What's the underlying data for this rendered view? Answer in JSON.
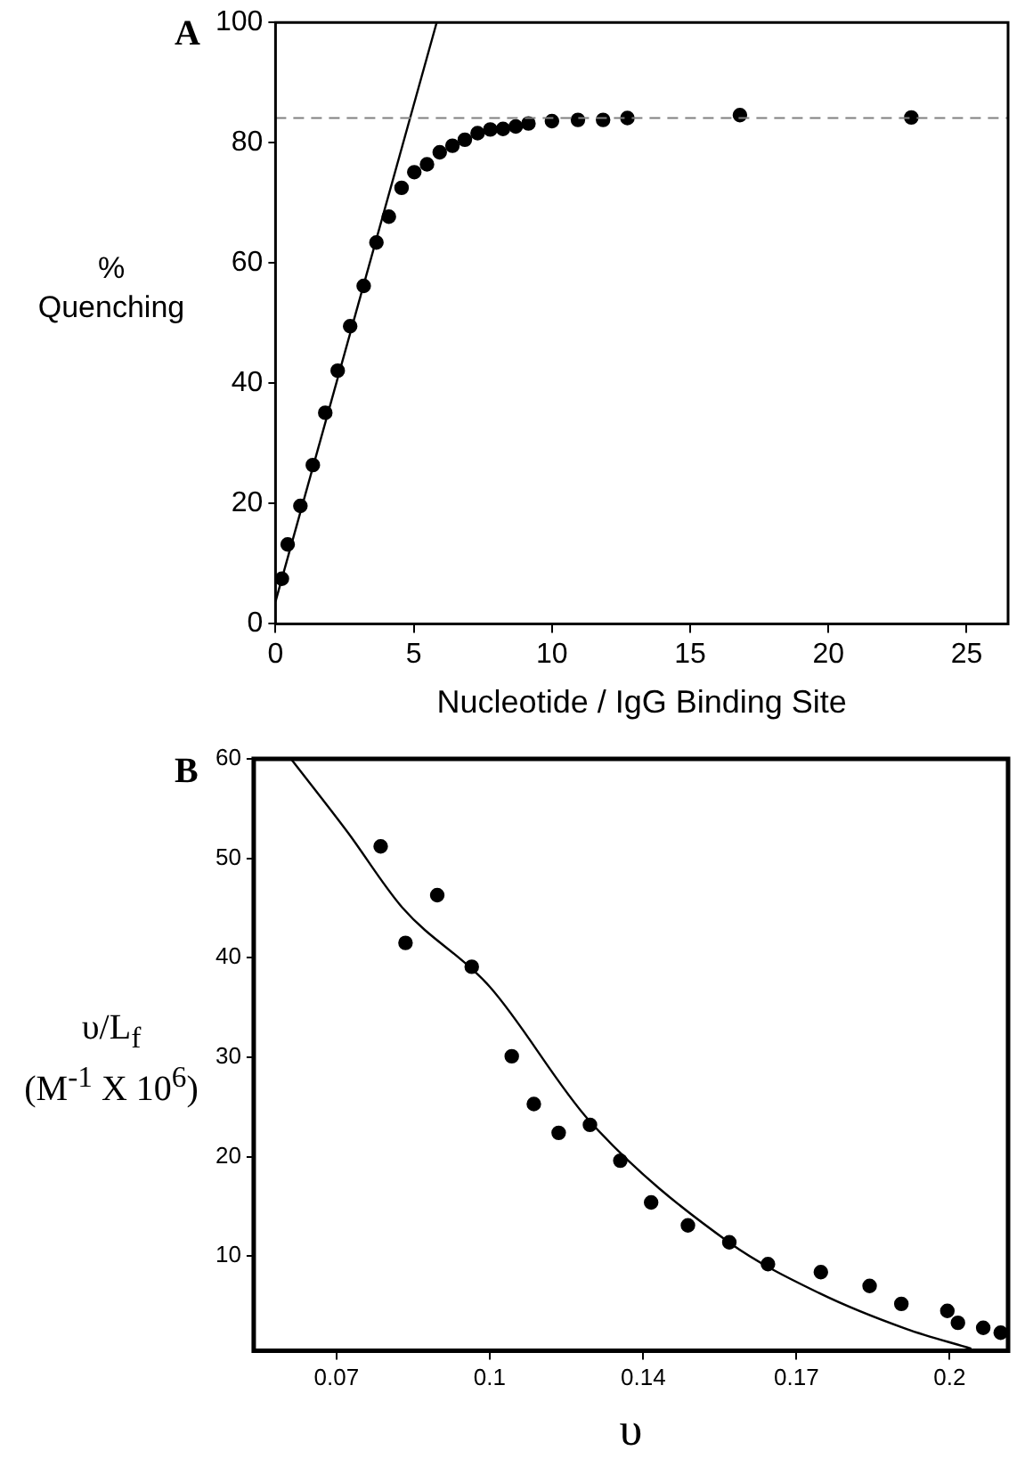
{
  "chart_data": [
    {
      "type": "scatter",
      "title": "A",
      "xlabel": "Nucleotide / IgG Binding Site",
      "ylabel": "%\nQuenching",
      "xlim": [
        0,
        26.5
      ],
      "ylim": [
        0,
        100
      ],
      "xticks": [
        0,
        5,
        10,
        15,
        20,
        25
      ],
      "yticks": [
        0,
        20,
        40,
        60,
        80,
        100
      ],
      "grid": false,
      "legend": false,
      "marker": "circle",
      "series": [
        {
          "type": "scatter",
          "color": "#000000",
          "x": [
            0.23,
            0.44,
            0.9,
            1.35,
            1.8,
            2.25,
            2.7,
            3.19,
            3.65,
            4.1,
            4.56,
            5.02,
            5.48,
            5.94,
            6.4,
            6.85,
            7.31,
            7.77,
            8.23,
            8.69,
            9.15,
            10.0,
            10.94,
            11.85,
            12.73,
            16.8,
            23.0
          ],
          "values": [
            7.5,
            13.2,
            19.6,
            26.4,
            35.1,
            42.1,
            49.5,
            56.2,
            63.4,
            67.7,
            72.5,
            75.1,
            76.4,
            78.4,
            79.5,
            80.5,
            81.6,
            82.2,
            82.3,
            82.7,
            83.2,
            83.6,
            83.8,
            83.8,
            84.1,
            84.6,
            84.2
          ]
        },
        {
          "type": "line",
          "color": "#000000",
          "marker": "none",
          "line_style": "solid",
          "x": [
            0,
            5.83
          ],
          "values": [
            3.7,
            100
          ]
        }
      ],
      "ref_lines": [
        {
          "axis": "y",
          "value": 84.1,
          "color": "#808080",
          "line_style": "dashed"
        }
      ]
    },
    {
      "type": "scatter",
      "title": "B",
      "xlabel": "υ",
      "ylabel": "υ/L$_{f}$\n(M$^{-1}$ X 10$^{6}$)",
      "xlim": [
        0.052,
        0.216
      ],
      "ylim": [
        0.5,
        60
      ],
      "xticks": [
        {
          "value": 0.07,
          "label": "0.07"
        },
        {
          "value": 0.1033,
          "label": "0.1"
        },
        {
          "value": 0.1367,
          "label": "0.14"
        },
        {
          "value": 0.17,
          "label": "0.17"
        },
        {
          "value": 0.2033,
          "label": "0.2"
        }
      ],
      "yticks": [
        10,
        20,
        30,
        40,
        50,
        60
      ],
      "grid": false,
      "legend": false,
      "marker": "circle",
      "series": [
        {
          "type": "scatter",
          "color": "#000000",
          "x": [
            0.0796,
            0.085,
            0.0919,
            0.0994,
            0.1081,
            0.1129,
            0.1183,
            0.1251,
            0.1317,
            0.1384,
            0.1464,
            0.1554,
            0.1638,
            0.1753,
            0.1859,
            0.1928,
            0.2028,
            0.2051,
            0.2106,
            0.2144
          ],
          "values": [
            51.2,
            41.5,
            46.3,
            39.1,
            30.1,
            25.3,
            22.4,
            23.2,
            19.6,
            15.4,
            13.1,
            11.4,
            9.2,
            8.4,
            7.0,
            5.2,
            4.5,
            3.3,
            2.8,
            2.3
          ]
        },
        {
          "type": "line",
          "color": "#000000",
          "marker": "none",
          "line_style": "solid",
          "x": [
            0.0601,
            0.0723,
            0.0844,
            0.1033,
            0.125,
            0.1553,
            0.1749,
            0.1938,
            0.208
          ],
          "values": [
            60,
            52.7,
            45,
            37.1,
            23.6,
            11.4,
            6.3,
            2.7,
            0.7
          ]
        }
      ]
    }
  ]
}
